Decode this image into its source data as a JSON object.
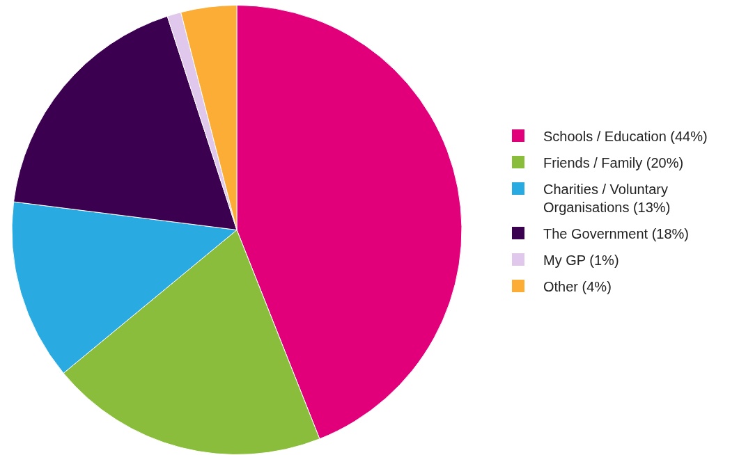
{
  "chart_data": {
    "type": "pie",
    "categories": [
      "Schools / Education (44%)",
      "Friends / Family (20%)",
      "Charities / Voluntary Organisations (13%)",
      "The Government (18%)",
      "My GP (1%)",
      "Other (4%)"
    ],
    "values": [
      44,
      20,
      13,
      18,
      1,
      4
    ],
    "colors": [
      "#e2007a",
      "#8bbd3c",
      "#29abe2",
      "#3c0050",
      "#e0c8ec",
      "#fbad36"
    ],
    "legend": "right"
  }
}
